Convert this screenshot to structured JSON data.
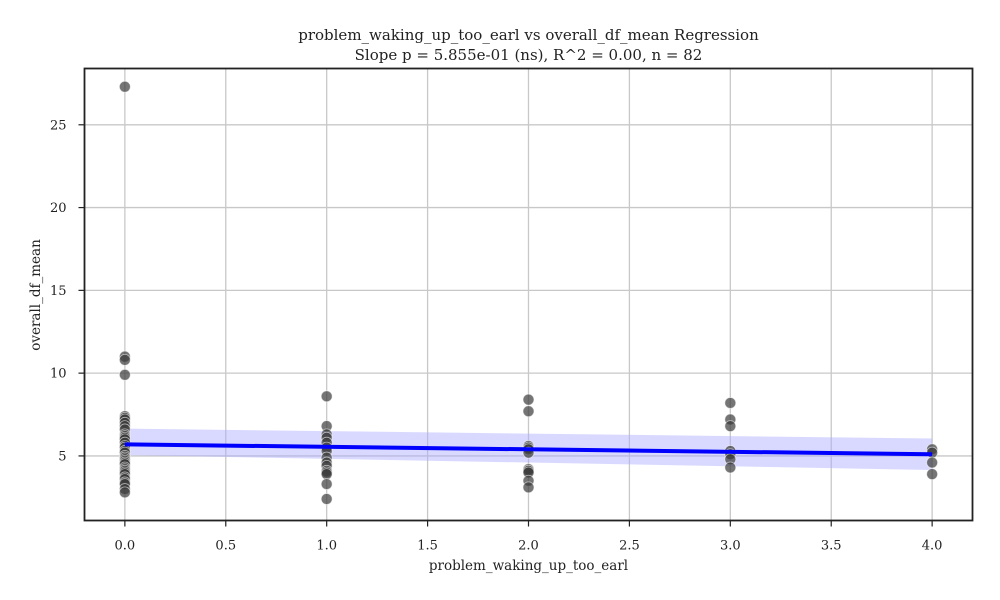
{
  "chart_data": {
    "type": "scatter",
    "title": "problem_waking_up_too_earl vs overall_df_mean Regression",
    "subtitle": "Slope p = 5.855e-01 (ns), R^2 = 0.00, n = 82",
    "xlabel": "problem_waking_up_too_earl",
    "ylabel": "overall_df_mean",
    "xlim": [
      -0.2,
      4.2
    ],
    "ylim": [
      1.1,
      28.4
    ],
    "xticks": [
      0.0,
      0.5,
      1.0,
      1.5,
      2.0,
      2.5,
      3.0,
      3.5,
      4.0
    ],
    "xtick_labels": [
      "0.0",
      "0.5",
      "1.0",
      "1.5",
      "2.0",
      "2.5",
      "3.0",
      "3.5",
      "4.0"
    ],
    "yticks": [
      5,
      10,
      15,
      20,
      25
    ],
    "ytick_labels": [
      "5",
      "10",
      "15",
      "20",
      "25"
    ],
    "grid": true,
    "colors": {
      "points": "#3a3a3a",
      "regression_line": "#0000ff",
      "confidence_band": "#aaaaff",
      "grid": "#c8c8c8",
      "frame": "#222222"
    },
    "points": [
      {
        "x": 0,
        "y": 27.3
      },
      {
        "x": 0,
        "y": 11.0
      },
      {
        "x": 0,
        "y": 10.8
      },
      {
        "x": 0,
        "y": 9.9
      },
      {
        "x": 0,
        "y": 7.4
      },
      {
        "x": 0,
        "y": 7.3
      },
      {
        "x": 0,
        "y": 7.2
      },
      {
        "x": 0,
        "y": 7.0
      },
      {
        "x": 0,
        "y": 6.8
      },
      {
        "x": 0,
        "y": 6.6
      },
      {
        "x": 0,
        "y": 6.3
      },
      {
        "x": 0,
        "y": 6.2
      },
      {
        "x": 0,
        "y": 6.1
      },
      {
        "x": 0,
        "y": 6.0
      },
      {
        "x": 0,
        "y": 5.8
      },
      {
        "x": 0,
        "y": 5.6
      },
      {
        "x": 0,
        "y": 5.5
      },
      {
        "x": 0,
        "y": 5.3
      },
      {
        "x": 0,
        "y": 5.2
      },
      {
        "x": 0,
        "y": 5.0
      },
      {
        "x": 0,
        "y": 4.9
      },
      {
        "x": 0,
        "y": 4.8
      },
      {
        "x": 0,
        "y": 4.7
      },
      {
        "x": 0,
        "y": 4.6
      },
      {
        "x": 0,
        "y": 4.5
      },
      {
        "x": 0,
        "y": 4.3
      },
      {
        "x": 0,
        "y": 4.2
      },
      {
        "x": 0,
        "y": 4.1
      },
      {
        "x": 0,
        "y": 4.0
      },
      {
        "x": 0,
        "y": 3.9
      },
      {
        "x": 0,
        "y": 3.7
      },
      {
        "x": 0,
        "y": 3.6
      },
      {
        "x": 0,
        "y": 3.4
      },
      {
        "x": 0,
        "y": 3.3
      },
      {
        "x": 0,
        "y": 3.0
      },
      {
        "x": 0,
        "y": 2.8
      },
      {
        "x": 1,
        "y": 8.6
      },
      {
        "x": 1,
        "y": 6.8
      },
      {
        "x": 1,
        "y": 6.3
      },
      {
        "x": 1,
        "y": 6.1
      },
      {
        "x": 1,
        "y": 5.8
      },
      {
        "x": 1,
        "y": 5.5
      },
      {
        "x": 1,
        "y": 5.3
      },
      {
        "x": 1,
        "y": 4.9
      },
      {
        "x": 1,
        "y": 4.6
      },
      {
        "x": 1,
        "y": 4.4
      },
      {
        "x": 1,
        "y": 4.1
      },
      {
        "x": 1,
        "y": 4.0
      },
      {
        "x": 1,
        "y": 3.9
      },
      {
        "x": 1,
        "y": 3.3
      },
      {
        "x": 1,
        "y": 2.4
      },
      {
        "x": 2,
        "y": 8.4
      },
      {
        "x": 2,
        "y": 7.7
      },
      {
        "x": 2,
        "y": 5.6
      },
      {
        "x": 2,
        "y": 5.5
      },
      {
        "x": 2,
        "y": 5.4
      },
      {
        "x": 2,
        "y": 5.2
      },
      {
        "x": 2,
        "y": 4.2
      },
      {
        "x": 2,
        "y": 4.1
      },
      {
        "x": 2,
        "y": 4.0
      },
      {
        "x": 2,
        "y": 3.5
      },
      {
        "x": 2,
        "y": 3.1
      },
      {
        "x": 3,
        "y": 8.2
      },
      {
        "x": 3,
        "y": 7.2
      },
      {
        "x": 3,
        "y": 6.8
      },
      {
        "x": 3,
        "y": 5.3
      },
      {
        "x": 3,
        "y": 5.1
      },
      {
        "x": 3,
        "y": 4.8
      },
      {
        "x": 3,
        "y": 4.3
      },
      {
        "x": 4,
        "y": 5.4
      },
      {
        "x": 4,
        "y": 5.2
      },
      {
        "x": 4,
        "y": 4.6
      },
      {
        "x": 4,
        "y": 3.9
      }
    ],
    "regression": {
      "x": [
        0,
        4
      ],
      "y": [
        5.7,
        5.1
      ],
      "ci_lower": [
        5.05,
        4.15
      ],
      "ci_upper": [
        6.65,
        6.05
      ]
    }
  }
}
